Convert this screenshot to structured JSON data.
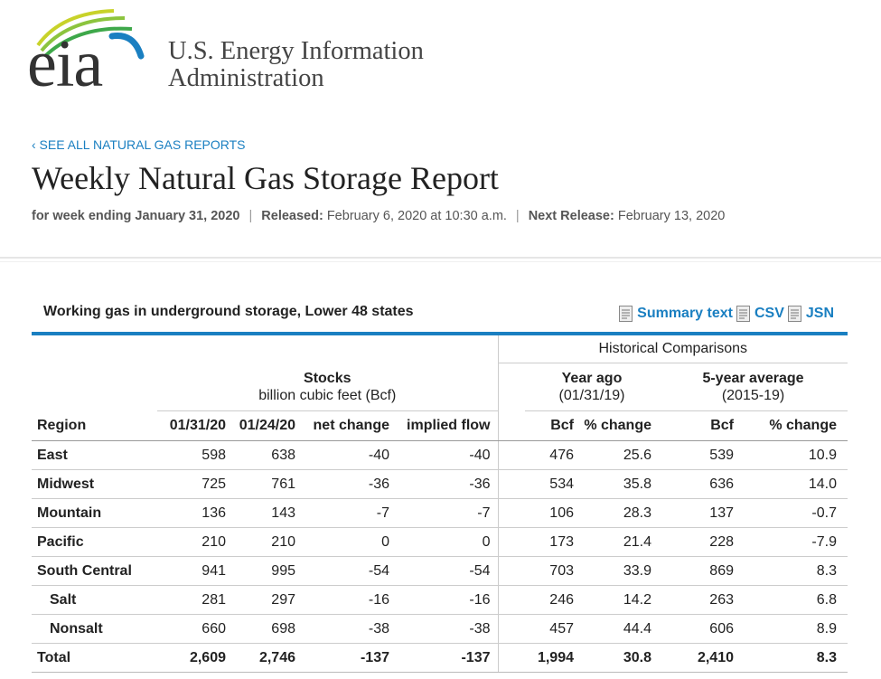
{
  "header": {
    "logo_text": "eia",
    "org_line1": "U.S. Energy Information",
    "org_line2": "Administration"
  },
  "nav": {
    "back_link": "‹ SEE ALL NATURAL GAS REPORTS"
  },
  "page": {
    "title": "Weekly Natural Gas Storage Report",
    "week_label": "for week ending January 31, 2020",
    "released_label": "Released:",
    "released_value": "February 6, 2020 at 10:30 a.m.",
    "next_label": "Next Release:",
    "next_value": "February 13, 2020",
    "separator": "|"
  },
  "table": {
    "caption": "Working gas in underground storage, Lower 48 states",
    "downloads": [
      "Summary text",
      "CSV",
      "JSN"
    ],
    "historical_label": "Historical Comparisons",
    "stocks_label": "Stocks",
    "stocks_unit": "billion cubic feet (Bcf)",
    "year_ago_label": "Year ago",
    "year_ago_date": "(01/31/19)",
    "avg_label": "5-year average",
    "avg_range": "(2015-19)",
    "columns": [
      "Region",
      "01/31/20",
      "01/24/20",
      "net change",
      "implied flow",
      "Bcf",
      "% change",
      "Bcf",
      "% change"
    ],
    "rows": [
      {
        "region": "East",
        "sub": false,
        "values": [
          "598",
          "638",
          "-40",
          "-40",
          "476",
          "25.6",
          "539",
          "10.9"
        ]
      },
      {
        "region": "Midwest",
        "sub": false,
        "values": [
          "725",
          "761",
          "-36",
          "-36",
          "534",
          "35.8",
          "636",
          "14.0"
        ]
      },
      {
        "region": "Mountain",
        "sub": false,
        "values": [
          "136",
          "143",
          "-7",
          "-7",
          "106",
          "28.3",
          "137",
          "-0.7"
        ]
      },
      {
        "region": "Pacific",
        "sub": false,
        "values": [
          "210",
          "210",
          "0",
          "0",
          "173",
          "21.4",
          "228",
          "-7.9"
        ]
      },
      {
        "region": "South Central",
        "sub": false,
        "values": [
          "941",
          "995",
          "-54",
          "-54",
          "703",
          "33.9",
          "869",
          "8.3"
        ]
      },
      {
        "region": "Salt",
        "sub": true,
        "values": [
          "281",
          "297",
          "-16",
          "-16",
          "246",
          "14.2",
          "263",
          "6.8"
        ]
      },
      {
        "region": "Nonsalt",
        "sub": true,
        "values": [
          "660",
          "698",
          "-38",
          "-38",
          "457",
          "44.4",
          "606",
          "8.9"
        ]
      }
    ],
    "total": {
      "region": "Total",
      "values": [
        "2,609",
        "2,746",
        "-137",
        "-137",
        "1,994",
        "30.8",
        "2,410",
        "8.3"
      ]
    }
  },
  "colors": {
    "link": "#1a7fc1",
    "logo_yellow": "#c8d22a",
    "logo_green": "#5ab04a",
    "logo_blue": "#1a7fc1"
  },
  "icons": [
    "document-icon"
  ]
}
